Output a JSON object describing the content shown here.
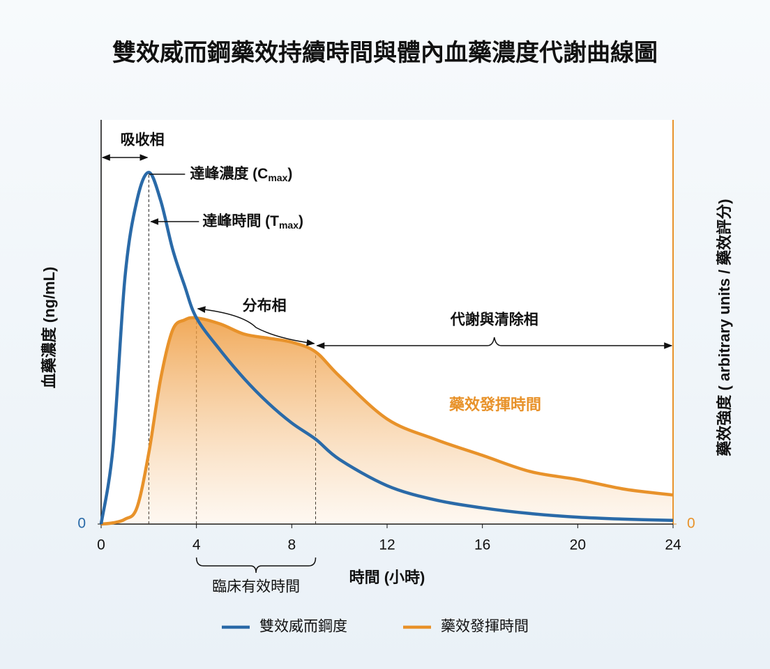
{
  "chart_data": {
    "type": "line",
    "title": "雙效威而鋼藥效持續時間與體內血藥濃度代謝曲線圖",
    "x_label": "時間 (小時)",
    "y_label": "血藥濃度 (ng/mL)",
    "y2_label": "藥效強度 ( arbitrary units / 藥效評分)",
    "x": [
      0,
      0.5,
      1,
      1.5,
      2,
      2.5,
      3,
      3.5,
      4,
      5,
      6,
      7,
      8,
      9,
      10,
      12,
      14,
      16,
      18,
      20,
      22,
      24
    ],
    "series": [
      {
        "name": "雙效威而鋼度",
        "color": "#2a6aa8",
        "values": [
          0,
          19,
          61,
          80,
          87,
          80,
          68,
          59,
          51,
          43,
          36,
          30,
          25,
          21,
          16,
          9.5,
          6,
          4,
          2.6,
          1.7,
          1.2,
          0.9
        ]
      },
      {
        "name": "藥效發揮時間",
        "color": "#e8922a",
        "axis": "y2",
        "values": [
          0,
          0.3,
          1.2,
          4,
          17.6,
          36,
          48,
          50.5,
          51,
          49.5,
          47,
          46,
          45,
          42.6,
          36.6,
          26,
          21,
          17,
          13,
          11,
          8.6,
          7.2
        ]
      }
    ],
    "xlim": [
      0,
      24
    ],
    "xticks": [
      0,
      4,
      8,
      12,
      16,
      20,
      24
    ],
    "ylim": [
      0,
      100
    ],
    "yticks": [
      0
    ],
    "y2lim": [
      0,
      100
    ],
    "y2ticks": [
      0
    ],
    "reference_lines": [
      2,
      4,
      9
    ],
    "phases": [
      {
        "label": "吸收相",
        "range": [
          0,
          2
        ]
      },
      {
        "label": "分布相",
        "range": [
          4,
          9
        ]
      },
      {
        "label": "代謝與清除相",
        "range": [
          9,
          24
        ]
      }
    ],
    "clinical_window": {
      "label": "臨床有效時間",
      "range": [
        4,
        9
      ]
    },
    "peak_labels": {
      "cmax": [
        "達峰濃度 (C",
        "max",
        ")"
      ],
      "tmax": [
        "達峰時間 (T",
        "max",
        ")"
      ]
    },
    "effect_label": "藥效發揮時間"
  }
}
